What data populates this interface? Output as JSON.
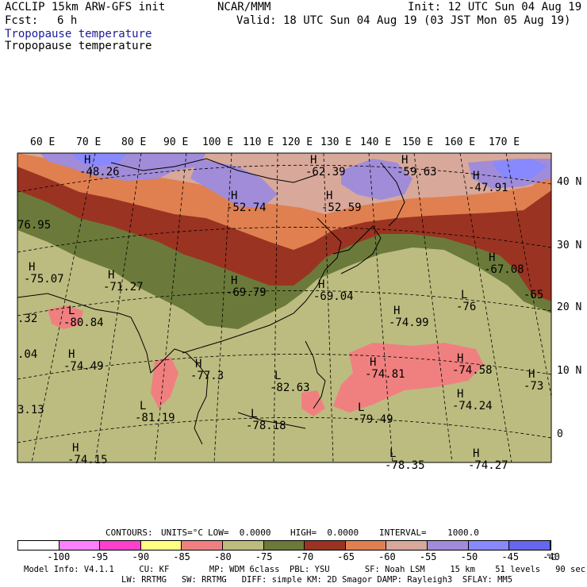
{
  "header": {
    "model": "ACCLIP 15km ARW-GFS init",
    "center": "NCAR/MMM",
    "init": "Init: 12 UTC Sun 04 Aug 19",
    "fcst_label": "Fcst:",
    "fcst_value": "6 h",
    "valid": "Valid: 18 UTC Sun 04 Aug 19 (03 JST Mon 05 Aug 19)",
    "field_title_1": "Tropopause temperature",
    "field_title_2": "Tropopause temperature"
  },
  "map": {
    "lon_labels": [
      "60 E",
      "70 E",
      "80 E",
      "90 E",
      "100 E",
      "110 E",
      "120 E",
      "130 E",
      "140 E",
      "150 E",
      "160 E",
      "170 E"
    ],
    "lat_labels": [
      "40 N",
      "30 N",
      "20 N",
      "10 N",
      "0"
    ],
    "extremes": [
      {
        "type": "H",
        "value": "-48.26"
      },
      {
        "type": "H",
        "value": "-62.39"
      },
      {
        "type": "H",
        "value": "-59.63"
      },
      {
        "type": "H",
        "value": "-47.91"
      },
      {
        "type": "H",
        "value": "-52.74"
      },
      {
        "type": "H",
        "value": "-52.59"
      },
      {
        "type": "",
        "value": "76.95"
      },
      {
        "type": "H",
        "value": "-75.07"
      },
      {
        "type": "H",
        "value": "-71.27"
      },
      {
        "type": "H",
        "value": "-67.08"
      },
      {
        "type": "H",
        "value": "-69.79"
      },
      {
        "type": "H",
        "value": "-69.04"
      },
      {
        "type": "",
        "value": "-65"
      },
      {
        "type": "L",
        "value": "-80.84"
      },
      {
        "type": "H",
        "value": "-74.99"
      },
      {
        "type": "L",
        "value": "-76"
      },
      {
        "type": "",
        "value": ".32"
      },
      {
        "type": "",
        "value": ".04"
      },
      {
        "type": "H",
        "value": "-74.49"
      },
      {
        "type": "H",
        "value": "-77.3"
      },
      {
        "type": "L",
        "value": "-82.63"
      },
      {
        "type": "H",
        "value": "-74.81"
      },
      {
        "type": "H",
        "value": "-74.58"
      },
      {
        "type": "H",
        "value": "-73"
      },
      {
        "type": "",
        "value": "3.13"
      },
      {
        "type": "L",
        "value": "-81.19"
      },
      {
        "type": "L",
        "value": "-78.18"
      },
      {
        "type": "L",
        "value": "-79.49"
      },
      {
        "type": "H",
        "value": "-74.24"
      },
      {
        "type": "H",
        "value": "-74.15"
      },
      {
        "type": "L",
        "value": "-78.35"
      },
      {
        "type": "H",
        "value": "-74.27"
      }
    ]
  },
  "contour_info": {
    "contours": "CONTOURS:",
    "units": "UNITS=°C",
    "low": "LOW=  0.0000",
    "high": "HIGH=  0.0000",
    "interval": "INTERVAL=    1000.0"
  },
  "colorbar": {
    "colors": [
      "#ffffff",
      "#ff80ff",
      "#ff40cc",
      "#ffff80",
      "#f08080",
      "#bcbc80",
      "#6b7a3a",
      "#9b3322",
      "#e08050",
      "#d8a89a",
      "#a08cd8",
      "#8888ff",
      "#6666ee"
    ],
    "labels": [
      "-100",
      "-95",
      "-90",
      "-85",
      "-80",
      "-75",
      "-70",
      "-65",
      "-60",
      "-55",
      "-50",
      "-45",
      "-40"
    ],
    "unit": "°C"
  },
  "footer": {
    "line1": "Model Info: V4.1.1     CU: KF        MP: WDM 6class  PBL: YSU       SF: Noah LSM     15 km    51 levels   90 sec",
    "line2": "LW: RRTMG   SW: RRTMG   DIFF: simple KM: 2D Smagor DAMP: Rayleigh3  SFLAY: MM5"
  }
}
